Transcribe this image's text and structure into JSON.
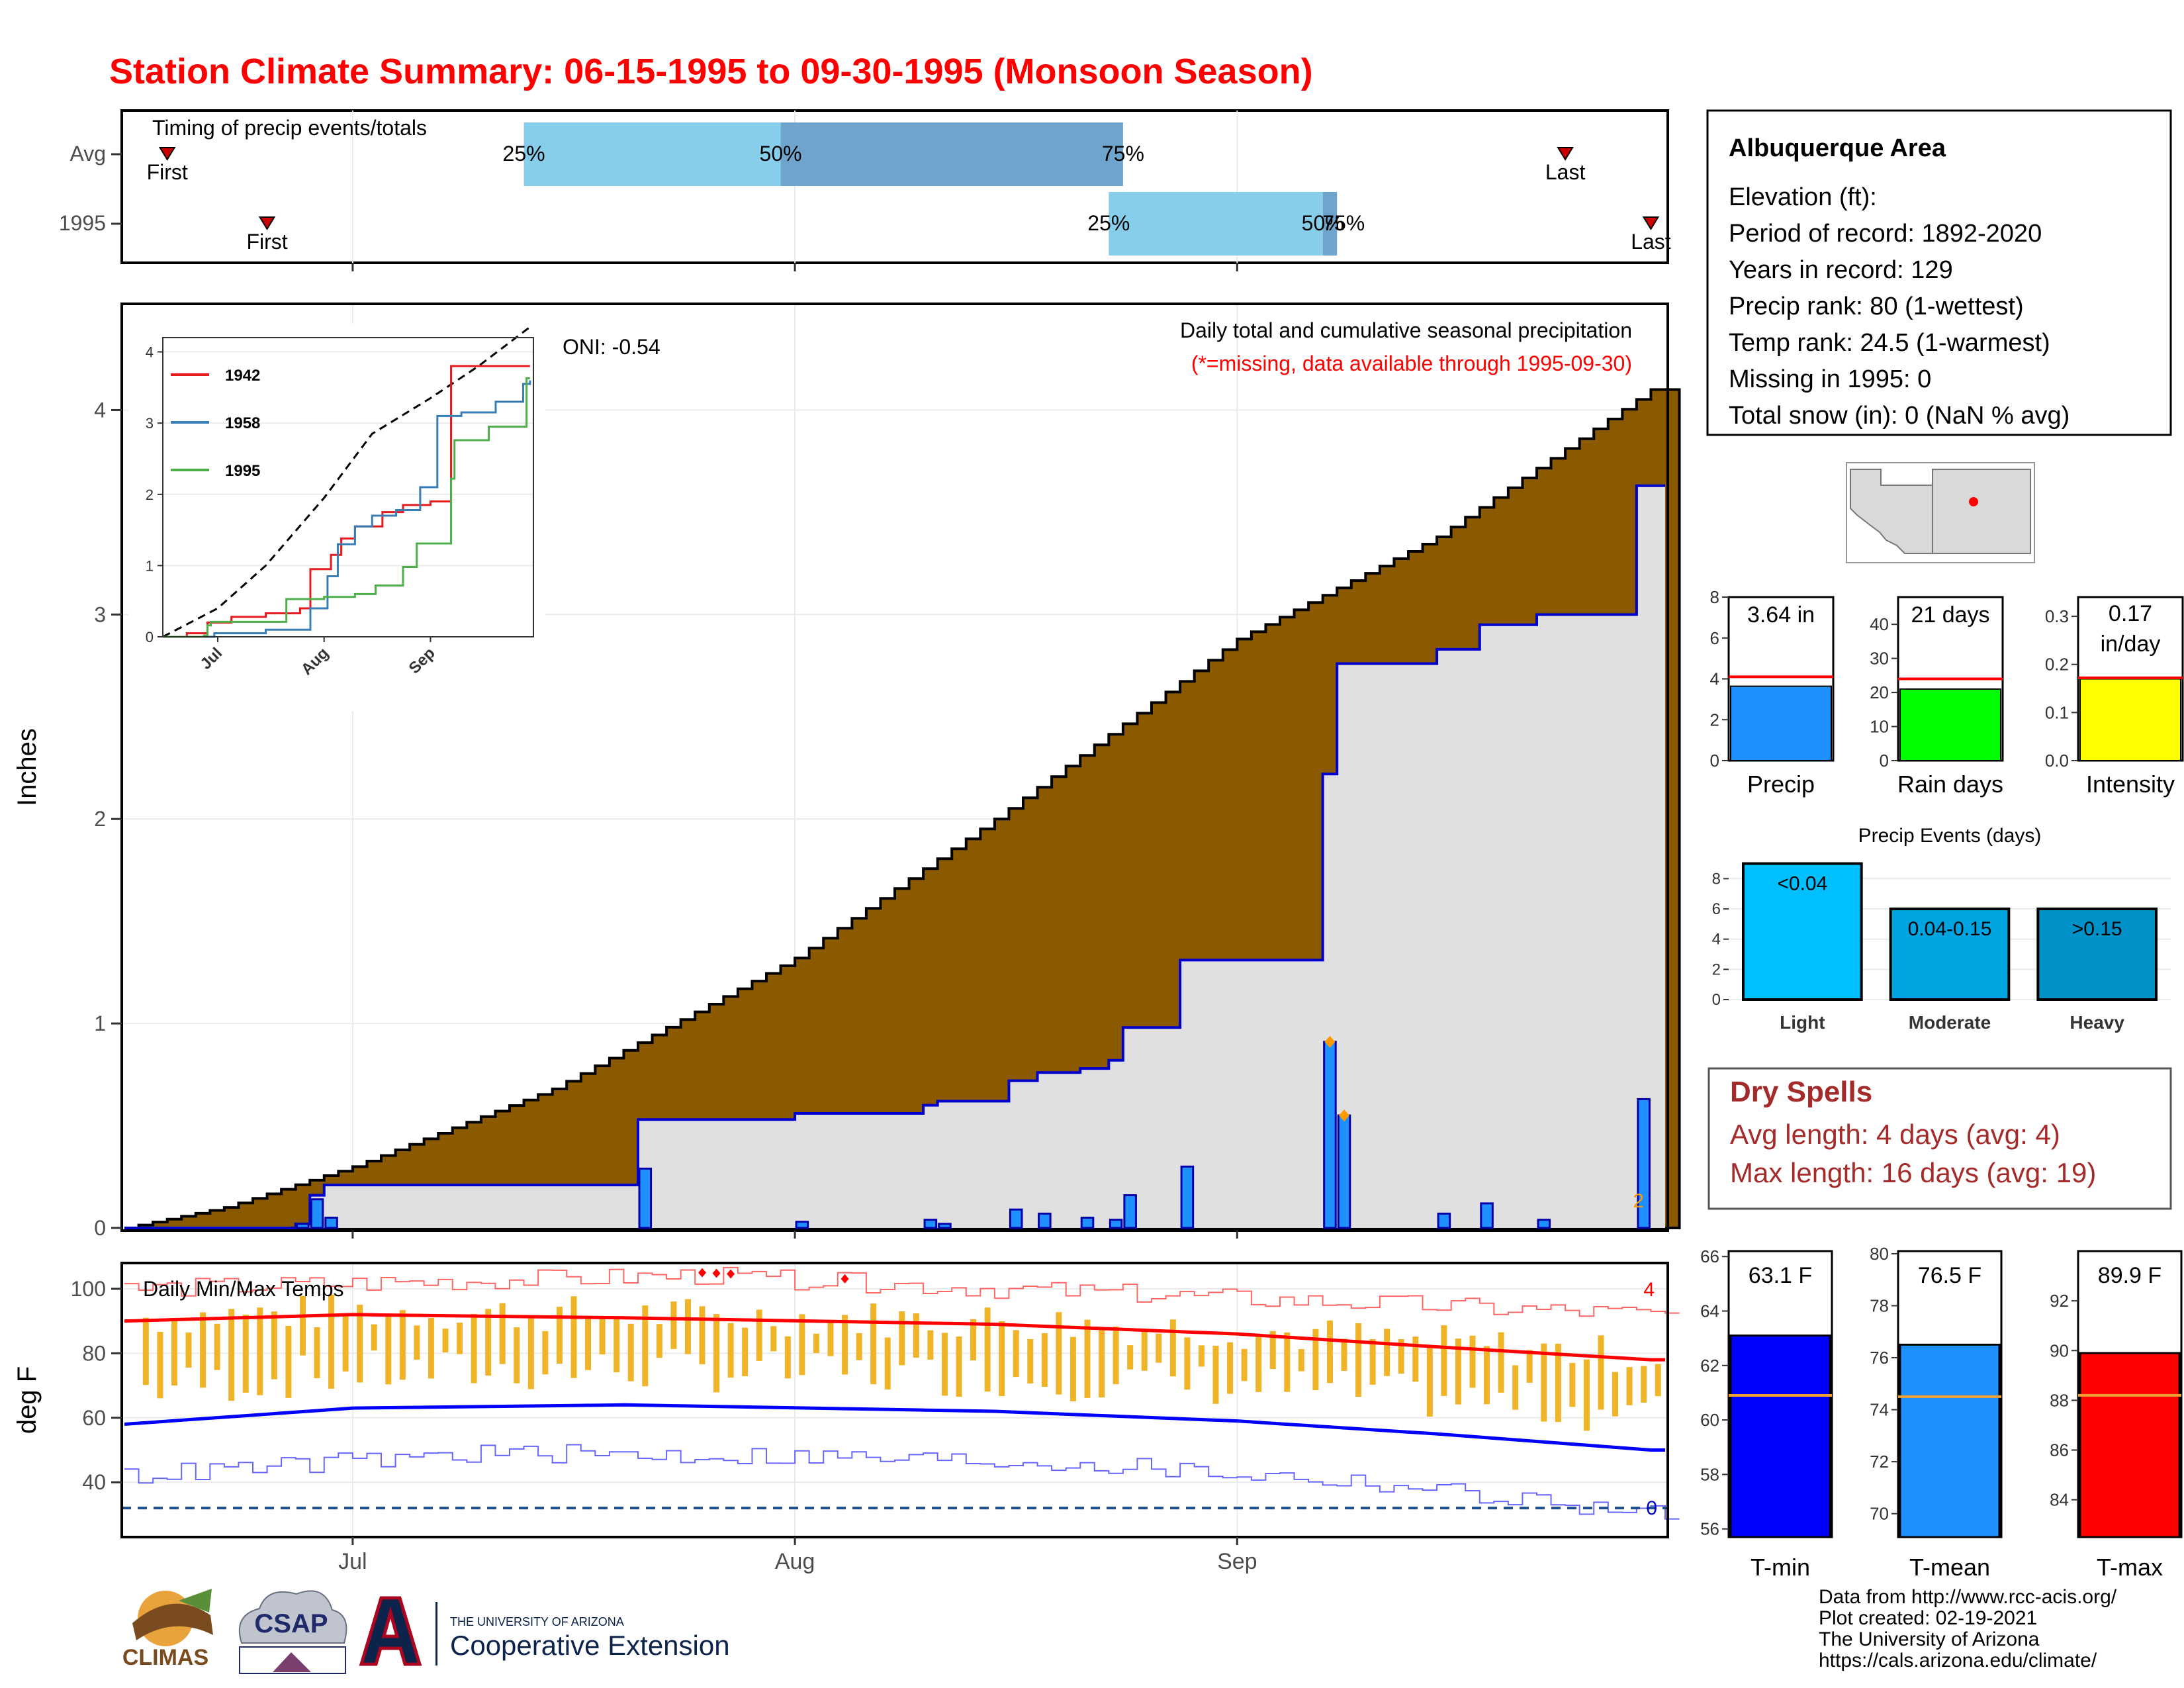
{
  "title": "Station Climate Summary: 06-15-1995 to 09-30-1995 (Monsoon Season)",
  "timing": {
    "label": "Timing of precip events/totals",
    "rows": [
      {
        "name": "Avg",
        "first_label": "First",
        "last_label": "Last",
        "first_date": "1995-06-18",
        "last_date": "1995-09-24",
        "p25": "1995-07-13",
        "p50": "1995-07-31",
        "p75": "1995-08-24",
        "p25_label": "25%",
        "p50_label": "50%",
        "p75_label": "75%"
      },
      {
        "name": "1995",
        "first_label": "First",
        "last_label": "Last",
        "first_date": "1995-06-25",
        "last_date": "1995-09-30",
        "p25": "1995-08-23",
        "p50": "1995-09-07",
        "p75": "1995-09-08",
        "p25_label": "25%",
        "p50_label": "50%",
        "p75_label": "75%"
      }
    ]
  },
  "precip_panel": {
    "ylabel": "Inches",
    "title_line1": "Daily total and cumulative seasonal precipitation",
    "title_line2": "(*=missing, data available through 1995-09-30)",
    "oni": "ONI: -0.54",
    "corner_count": "2",
    "yticks": [
      "0",
      "1",
      "2",
      "3",
      "4"
    ],
    "xticks": [
      {
        "date": "1995-07-01",
        "label": "Jul"
      },
      {
        "date": "1995-08-01",
        "label": "Aug"
      },
      {
        "date": "1995-09-01",
        "label": "Sep"
      }
    ]
  },
  "inset": {
    "yticks": [
      "0",
      "1",
      "2",
      "3",
      "4"
    ],
    "xticks": [
      "Jul",
      "Aug",
      "Sep"
    ],
    "legend": [
      {
        "name": "1942",
        "color": "#e41a1c"
      },
      {
        "name": "1958",
        "color": "#377eb8"
      },
      {
        "name": "1995",
        "color": "#4daf4a"
      }
    ]
  },
  "temp_panel": {
    "ylabel": "deg F",
    "label": "Daily Min/Max Temps",
    "count_high": "4",
    "count_low": "0",
    "yticks": [
      "40",
      "60",
      "80",
      "100"
    ],
    "freeze_line": 32
  },
  "station": {
    "name": "Albuquerque Area",
    "lines": [
      "Elevation (ft):",
      "Period of record: 1892-2020",
      "Years in record: 129",
      "Precip rank: 80 (1-wettest)",
      "Temp rank: 24.5 (1-warmest)",
      "Missing in 1995: 0",
      "Total snow (in): 0 (NaN % avg)"
    ]
  },
  "summary_bars": [
    {
      "name": "Precip",
      "label": "3.64 in",
      "value": 3.64,
      "avg": 4.1,
      "ymax": 8,
      "yticks": [
        "0",
        "2",
        "4",
        "6",
        "8"
      ],
      "color": "#1e90ff"
    },
    {
      "name": "Rain days",
      "label": "21 days",
      "value": 21,
      "avg": 24,
      "ymax": 48,
      "yticks": [
        "0",
        "10",
        "20",
        "30",
        "40"
      ],
      "color": "#00ff00"
    },
    {
      "name": "Intensity",
      "label_line1": "0.17",
      "label_line2": "in/day",
      "value": 0.17,
      "avg": 0.172,
      "ymax": 0.34,
      "yticks": [
        "0.0",
        "0.1",
        "0.2",
        "0.3"
      ],
      "color": "#ffff00"
    }
  ],
  "events": {
    "title": "Precip Events (days)",
    "yticks": [
      "0",
      "2",
      "4",
      "6",
      "8"
    ],
    "bars": [
      {
        "name": "Light",
        "label": "<0.04",
        "value": 9,
        "color": "#00bfff"
      },
      {
        "name": "Moderate",
        "label": "0.04-0.15",
        "value": 6,
        "color": "#00a4e0"
      },
      {
        "name": "Heavy",
        "label": ">0.15",
        "value": 6,
        "color": "#0091c8"
      }
    ]
  },
  "dry_spells": {
    "title": "Dry Spells",
    "line1": "Avg length: 4 days (avg: 4)",
    "line2": "Max length: 16 days (avg: 19)"
  },
  "temp_bars": [
    {
      "name": "T-min",
      "label": "63.1 F",
      "value": 63.1,
      "avg": 60.9,
      "ymin": 55.7,
      "ymax": 66.2,
      "ticks": [
        56,
        58,
        60,
        62,
        64,
        66
      ],
      "color": "#0000ff"
    },
    {
      "name": "T-mean",
      "label": "76.5 F",
      "value": 76.5,
      "avg": 74.5,
      "ymin": 69.1,
      "ymax": 80.1,
      "ticks": [
        70,
        72,
        74,
        76,
        78,
        80
      ],
      "color": "#1e90ff"
    },
    {
      "name": "T-max",
      "label": "89.9 F",
      "value": 89.9,
      "avg": 88.2,
      "ymin": 82.5,
      "ymax": 94.0,
      "ticks": [
        84,
        86,
        88,
        90,
        92
      ],
      "color": "#ff0000"
    }
  ],
  "credits": [
    "Data from http://www.rcc-acis.org/",
    "Plot created: 02-19-2021",
    "The University of Arizona",
    "https://cals.arizona.edu/climate/"
  ],
  "logos": {
    "climas": "CLIMAS",
    "csap": "CSAP",
    "ua_line1": "THE UNIVERSITY OF ARIZONA",
    "ua_line2": "Cooperative Extension"
  },
  "chart_data": [
    {
      "type": "area",
      "name_in_figure": "cumulative",
      "x_start": "1995-06-15",
      "x_end": "1995-09-30",
      "ylim": [
        0,
        4.5
      ],
      "ylabel": "Inches",
      "avg_cumulative": [
        {
          "x": "1995-06-15",
          "y": 0.0
        },
        {
          "x": "1995-06-22",
          "y": 0.1
        },
        {
          "x": "1995-07-01",
          "y": 0.3
        },
        {
          "x": "1995-07-15",
          "y": 0.68
        },
        {
          "x": "1995-08-01",
          "y": 1.32
        },
        {
          "x": "1995-08-15",
          "y": 2.0
        },
        {
          "x": "1995-09-01",
          "y": 2.88
        },
        {
          "x": "1995-09-15",
          "y": 3.38
        },
        {
          "x": "1995-09-30",
          "y": 4.1
        }
      ],
      "daily_precip_1995": [
        {
          "x": "1995-06-27",
          "y": 0.02
        },
        {
          "x": "1995-06-28",
          "y": 0.14
        },
        {
          "x": "1995-06-29",
          "y": 0.05
        },
        {
          "x": "1995-07-21",
          "y": 0.29
        },
        {
          "x": "1995-08-01",
          "y": 0.03
        },
        {
          "x": "1995-08-10",
          "y": 0.04
        },
        {
          "x": "1995-08-11",
          "y": 0.02
        },
        {
          "x": "1995-08-16",
          "y": 0.09
        },
        {
          "x": "1995-08-18",
          "y": 0.07
        },
        {
          "x": "1995-08-21",
          "y": 0.05
        },
        {
          "x": "1995-08-23",
          "y": 0.04
        },
        {
          "x": "1995-08-24",
          "y": 0.16
        },
        {
          "x": "1995-08-28",
          "y": 0.3
        },
        {
          "x": "1995-09-07",
          "y": 0.91
        },
        {
          "x": "1995-09-08",
          "y": 0.55
        },
        {
          "x": "1995-09-15",
          "y": 0.07
        },
        {
          "x": "1995-09-18",
          "y": 0.12
        },
        {
          "x": "1995-09-22",
          "y": 0.04
        },
        {
          "x": "1995-09-29",
          "y": 0.63
        }
      ],
      "cumulative_1995": [
        {
          "x": "1995-06-15",
          "y": 0.0
        },
        {
          "x": "1995-06-27",
          "y": 0.02
        },
        {
          "x": "1995-06-28",
          "y": 0.16
        },
        {
          "x": "1995-06-29",
          "y": 0.21
        },
        {
          "x": "1995-07-21",
          "y": 0.53
        },
        {
          "x": "1995-08-01",
          "y": 0.56
        },
        {
          "x": "1995-08-10",
          "y": 0.6
        },
        {
          "x": "1995-08-11",
          "y": 0.62
        },
        {
          "x": "1995-08-16",
          "y": 0.72
        },
        {
          "x": "1995-08-18",
          "y": 0.76
        },
        {
          "x": "1995-08-21",
          "y": 0.78
        },
        {
          "x": "1995-08-23",
          "y": 0.82
        },
        {
          "x": "1995-08-24",
          "y": 0.98
        },
        {
          "x": "1995-08-28",
          "y": 1.31
        },
        {
          "x": "1995-09-07",
          "y": 2.22
        },
        {
          "x": "1995-09-08",
          "y": 2.76
        },
        {
          "x": "1995-09-15",
          "y": 2.83
        },
        {
          "x": "1995-09-18",
          "y": 2.95
        },
        {
          "x": "1995-09-22",
          "y": 3.0
        },
        {
          "x": "1995-09-29",
          "y": 3.63
        },
        {
          "x": "1995-09-30",
          "y": 3.63
        }
      ],
      "marked_days": [
        "1995-09-07",
        "1995-09-08"
      ]
    },
    {
      "type": "line",
      "name_in_figure": "inset",
      "x_start": "1995-06-15",
      "x_end": "1995-09-30",
      "ylim": [
        0,
        4.2
      ],
      "avg": [
        {
          "x": "1995-06-15",
          "y": 0.0
        },
        {
          "x": "1995-07-01",
          "y": 0.4
        },
        {
          "x": "1995-07-15",
          "y": 1.0
        },
        {
          "x": "1995-08-01",
          "y": 1.95
        },
        {
          "x": "1995-08-15",
          "y": 2.85
        },
        {
          "x": "1995-09-01",
          "y": 3.35
        },
        {
          "x": "1995-09-15",
          "y": 3.8
        },
        {
          "x": "1995-09-30",
          "y": 4.45
        }
      ],
      "series": [
        {
          "name": "1942",
          "points": [
            {
              "x": "1995-06-15",
              "y": 0
            },
            {
              "x": "1995-06-22",
              "y": 0.05
            },
            {
              "x": "1995-06-28",
              "y": 0.2
            },
            {
              "x": "1995-07-05",
              "y": 0.28
            },
            {
              "x": "1995-07-15",
              "y": 0.33
            },
            {
              "x": "1995-07-25",
              "y": 0.4
            },
            {
              "x": "1995-07-28",
              "y": 0.95
            },
            {
              "x": "1995-08-03",
              "y": 1.15
            },
            {
              "x": "1995-08-06",
              "y": 1.38
            },
            {
              "x": "1995-08-10",
              "y": 1.55
            },
            {
              "x": "1995-08-18",
              "y": 1.75
            },
            {
              "x": "1995-08-24",
              "y": 1.85
            },
            {
              "x": "1995-09-01",
              "y": 1.9
            },
            {
              "x": "1995-09-07",
              "y": 3.8
            },
            {
              "x": "1995-09-30",
              "y": 3.8
            }
          ]
        },
        {
          "name": "1958",
          "points": [
            {
              "x": "1995-06-15",
              "y": 0
            },
            {
              "x": "1995-06-30",
              "y": 0.05
            },
            {
              "x": "1995-07-15",
              "y": 0.1
            },
            {
              "x": "1995-07-28",
              "y": 0.4
            },
            {
              "x": "1995-08-02",
              "y": 0.85
            },
            {
              "x": "1995-08-05",
              "y": 1.3
            },
            {
              "x": "1995-08-10",
              "y": 1.55
            },
            {
              "x": "1995-08-15",
              "y": 1.7
            },
            {
              "x": "1995-08-22",
              "y": 1.78
            },
            {
              "x": "1995-08-29",
              "y": 2.1
            },
            {
              "x": "1995-09-03",
              "y": 3.1
            },
            {
              "x": "1995-09-10",
              "y": 3.15
            },
            {
              "x": "1995-09-20",
              "y": 3.3
            },
            {
              "x": "1995-09-28",
              "y": 3.55
            },
            {
              "x": "1995-09-30",
              "y": 3.6
            }
          ]
        },
        {
          "name": "1995",
          "points": [
            {
              "x": "1995-06-15",
              "y": 0
            },
            {
              "x": "1995-06-27",
              "y": 0.02
            },
            {
              "x": "1995-06-28",
              "y": 0.16
            },
            {
              "x": "1995-06-29",
              "y": 0.21
            },
            {
              "x": "1995-07-21",
              "y": 0.53
            },
            {
              "x": "1995-08-01",
              "y": 0.56
            },
            {
              "x": "1995-08-10",
              "y": 0.6
            },
            {
              "x": "1995-08-16",
              "y": 0.72
            },
            {
              "x": "1995-08-24",
              "y": 0.98
            },
            {
              "x": "1995-08-28",
              "y": 1.31
            },
            {
              "x": "1995-09-07",
              "y": 2.22
            },
            {
              "x": "1995-09-08",
              "y": 2.76
            },
            {
              "x": "1995-09-18",
              "y": 2.95
            },
            {
              "x": "1995-09-29",
              "y": 3.63
            },
            {
              "x": "1995-09-30",
              "y": 3.63
            }
          ]
        }
      ]
    },
    {
      "type": "line",
      "name_in_figure": "temperatures",
      "x_start": "1995-06-15",
      "x_end": "1995-09-30",
      "ylim": [
        23,
        108
      ],
      "ylabel": "deg F",
      "avg_max": [
        {
          "x": "1995-06-15",
          "y": 90
        },
        {
          "x": "1995-07-01",
          "y": 92
        },
        {
          "x": "1995-07-20",
          "y": 91
        },
        {
          "x": "1995-08-15",
          "y": 89
        },
        {
          "x": "1995-09-01",
          "y": 86
        },
        {
          "x": "1995-09-15",
          "y": 82
        },
        {
          "x": "1995-09-30",
          "y": 78
        }
      ],
      "avg_min": [
        {
          "x": "1995-06-15",
          "y": 58
        },
        {
          "x": "1995-07-01",
          "y": 63
        },
        {
          "x": "1995-07-20",
          "y": 64
        },
        {
          "x": "1995-08-15",
          "y": 62
        },
        {
          "x": "1995-09-01",
          "y": 59
        },
        {
          "x": "1995-09-15",
          "y": 55
        },
        {
          "x": "1995-09-30",
          "y": 50
        }
      ],
      "record_max": [
        {
          "x": "1995-06-15",
          "y": 100
        },
        {
          "x": "1995-07-05",
          "y": 102
        },
        {
          "x": "1995-07-25",
          "y": 104
        },
        {
          "x": "1995-08-15",
          "y": 100
        },
        {
          "x": "1995-09-01",
          "y": 97
        },
        {
          "x": "1995-09-30",
          "y": 92
        }
      ],
      "record_min": [
        {
          "x": "1995-06-15",
          "y": 42
        },
        {
          "x": "1995-07-10",
          "y": 49
        },
        {
          "x": "1995-08-01",
          "y": 48
        },
        {
          "x": "1995-08-20",
          "y": 46
        },
        {
          "x": "1995-09-10",
          "y": 40
        },
        {
          "x": "1995-09-30",
          "y": 30
        }
      ],
      "record_highs_1995": [
        "1995-07-25",
        "1995-07-26",
        "1995-07-27",
        "1995-08-04"
      ]
    }
  ]
}
